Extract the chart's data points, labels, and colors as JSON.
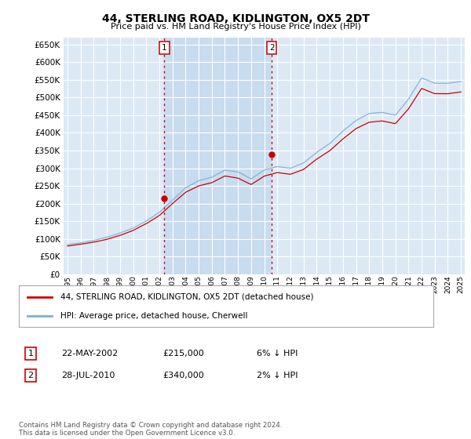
{
  "title": "44, STERLING ROAD, KIDLINGTON, OX5 2DT",
  "subtitle": "Price paid vs. HM Land Registry's House Price Index (HPI)",
  "ylim": [
    0,
    670000
  ],
  "yticks": [
    0,
    50000,
    100000,
    150000,
    200000,
    250000,
    300000,
    350000,
    400000,
    450000,
    500000,
    550000,
    600000,
    650000
  ],
  "plot_bg": "#dce9f5",
  "shade_between": "#c8dcf0",
  "legend_label_red": "44, STERLING ROAD, KIDLINGTON, OX5 2DT (detached house)",
  "legend_label_blue": "HPI: Average price, detached house, Cherwell",
  "transaction1_date": "22-MAY-2002",
  "transaction1_price": "£215,000",
  "transaction1_pct": "6% ↓ HPI",
  "transaction2_date": "28-JUL-2010",
  "transaction2_price": "£340,000",
  "transaction2_pct": "2% ↓ HPI",
  "footer": "Contains HM Land Registry data © Crown copyright and database right 2024.\nThis data is licensed under the Open Government Licence v3.0.",
  "red_color": "#cc0000",
  "blue_color": "#7aafd4",
  "marker1_x": 2002.38,
  "marker1_y": 215000,
  "marker2_x": 2010.57,
  "marker2_y": 340000,
  "xlim_left": 1994.7,
  "xlim_right": 2025.3
}
